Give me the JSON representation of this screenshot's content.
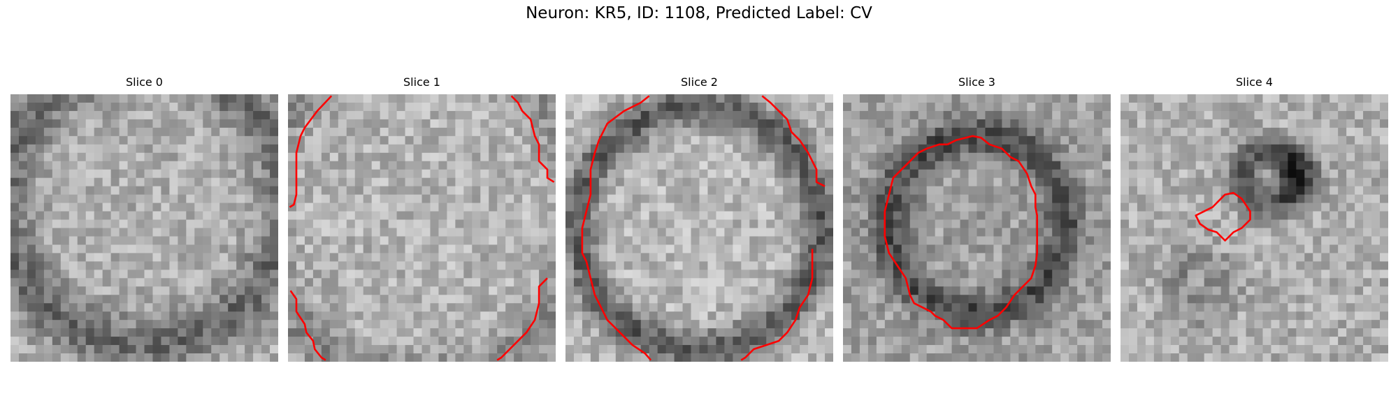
{
  "figure": {
    "title": "Neuron: KR5, ID: 1108, Predicted Label: CV"
  },
  "panels": [
    {
      "title": "Slice 0",
      "contour": "none"
    },
    {
      "title": "Slice 1",
      "contour": "partial-edges"
    },
    {
      "title": "Slice 2",
      "contour": "large-ring"
    },
    {
      "title": "Slice 3",
      "contour": "medium-ring"
    },
    {
      "title": "Slice 4",
      "contour": "small-ring"
    }
  ],
  "colors": {
    "contour": "#ff0000",
    "background": "#ffffff"
  }
}
